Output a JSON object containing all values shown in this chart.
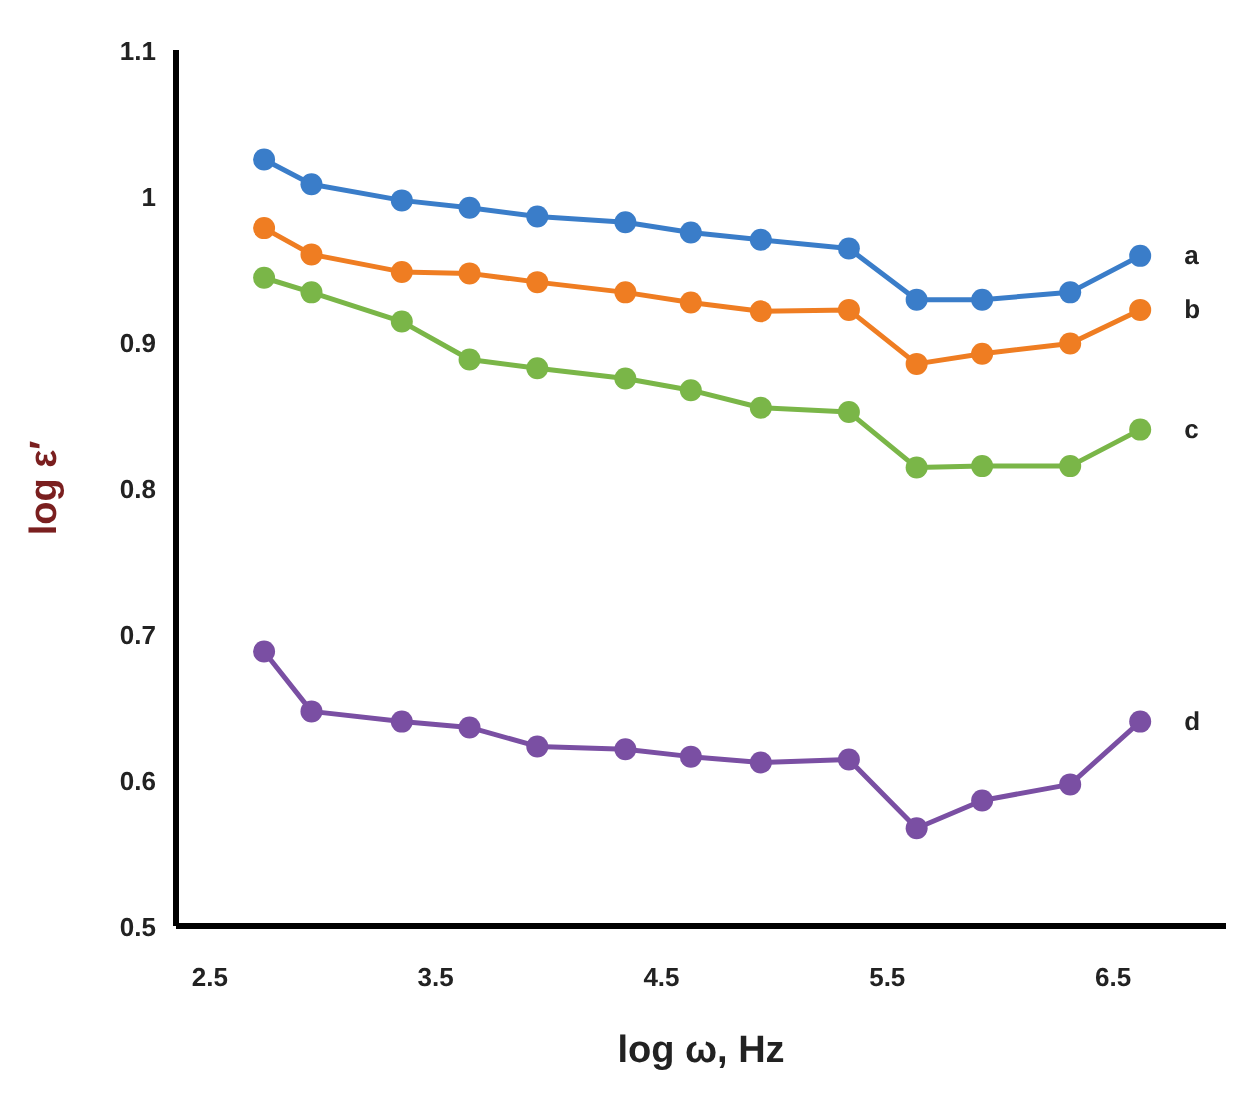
{
  "chart_data": {
    "type": "line",
    "xlabel": "log ω, Hz",
    "ylabel": "log ε′",
    "x": [
      2.74,
      2.95,
      3.35,
      3.65,
      3.95,
      4.34,
      4.63,
      4.94,
      5.33,
      5.63,
      5.92,
      6.31,
      6.62
    ],
    "series": [
      {
        "name": "a",
        "color": "#3a7dc9",
        "values": [
          1.025,
          1.008,
          0.997,
          0.992,
          0.986,
          0.982,
          0.975,
          0.97,
          0.964,
          0.929,
          0.929,
          0.934,
          0.959
        ]
      },
      {
        "name": "b",
        "color": "#ef7d22",
        "values": [
          0.978,
          0.96,
          0.948,
          0.947,
          0.941,
          0.934,
          0.927,
          0.921,
          0.922,
          0.885,
          0.892,
          0.899,
          0.922
        ]
      },
      {
        "name": "c",
        "color": "#7ab648",
        "values": [
          0.944,
          0.934,
          0.914,
          0.888,
          0.882,
          0.875,
          0.867,
          0.855,
          0.852,
          0.814,
          0.815,
          0.815,
          0.84
        ]
      },
      {
        "name": "d",
        "color": "#7a4fa3",
        "values": [
          0.688,
          0.647,
          0.64,
          0.636,
          0.623,
          0.621,
          0.616,
          0.612,
          0.614,
          0.567,
          0.586,
          0.597,
          0.64
        ]
      }
    ],
    "xlim": [
      2.35,
      7.0
    ],
    "xticks": [
      2.5,
      3.5,
      4.5,
      5.5,
      6.5
    ],
    "ylim": [
      0.5,
      1.1
    ],
    "yticks": [
      0.5,
      0.6,
      0.7,
      0.8,
      0.9,
      1,
      1.1
    ],
    "grid": false,
    "marker": "circle",
    "line_style": "solid"
  }
}
